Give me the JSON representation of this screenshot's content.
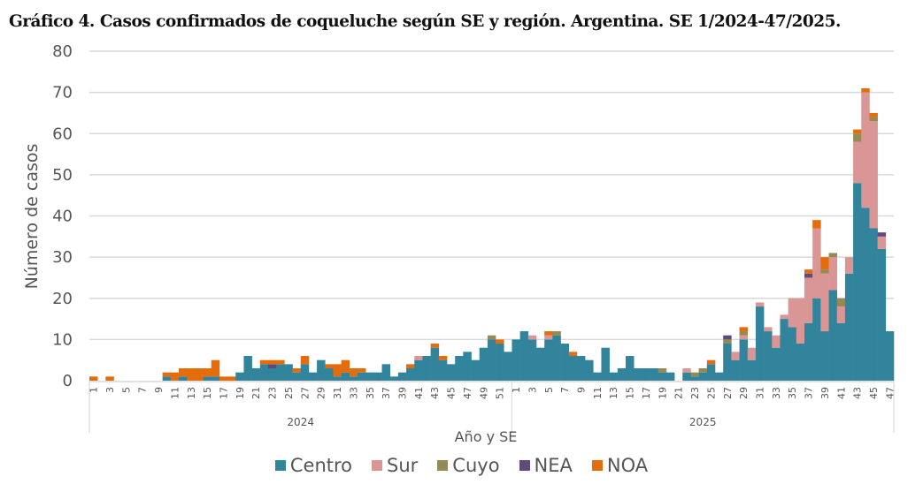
{
  "chart_data": {
    "type": "bar",
    "stacked": true,
    "title": "Gráfico 4. Casos confirmados de coqueluche según SE y región. Argentina. SE 1/2024-47/2025.",
    "xlabel": "Año y SE",
    "ylabel": "Número de casos",
    "ylim": [
      0,
      80
    ],
    "yticks": [
      0,
      10,
      20,
      30,
      40,
      50,
      60,
      70,
      80
    ],
    "grid": true,
    "legend_position": "bottom",
    "groups": [
      {
        "label": "2024",
        "weeks": 52
      },
      {
        "label": "2025",
        "weeks": 47
      }
    ],
    "categories": [
      "1",
      "2",
      "3",
      "4",
      "5",
      "6",
      "7",
      "8",
      "9",
      "10",
      "11",
      "12",
      "13",
      "14",
      "15",
      "16",
      "17",
      "18",
      "19",
      "20",
      "21",
      "22",
      "23",
      "24",
      "25",
      "26",
      "27",
      "28",
      "29",
      "30",
      "31",
      "32",
      "33",
      "34",
      "35",
      "36",
      "37",
      "38",
      "39",
      "40",
      "41",
      "42",
      "43",
      "44",
      "45",
      "46",
      "47",
      "48",
      "49",
      "50",
      "51",
      "52",
      "1",
      "2",
      "3",
      "4",
      "5",
      "6",
      "7",
      "8",
      "9",
      "10",
      "11",
      "12",
      "13",
      "14",
      "15",
      "16",
      "17",
      "18",
      "19",
      "20",
      "21",
      "22",
      "23",
      "24",
      "25",
      "26",
      "27",
      "28",
      "29",
      "30",
      "31",
      "32",
      "33",
      "34",
      "35",
      "36",
      "37",
      "38",
      "39",
      "40",
      "41",
      "42",
      "43",
      "44",
      "45",
      "46",
      "47"
    ],
    "tick_labels": [
      "1",
      "3",
      "5",
      "7",
      "9",
      "11",
      "13",
      "15",
      "17",
      "19",
      "21",
      "23",
      "25",
      "27",
      "29",
      "31",
      "33",
      "35",
      "37",
      "39",
      "41",
      "43",
      "45",
      "47",
      "49",
      "51",
      "1",
      "3",
      "5",
      "7",
      "9",
      "11",
      "13",
      "15",
      "17",
      "19",
      "21",
      "23",
      "25",
      "27",
      "29",
      "31",
      "33",
      "35",
      "37",
      "39",
      "41",
      "43",
      "45",
      "47"
    ],
    "series": [
      {
        "name": "Centro",
        "color": "#31849b",
        "values": [
          0,
          0,
          0,
          0,
          0,
          0,
          0,
          0,
          0,
          1,
          0,
          1,
          0,
          0,
          1,
          1,
          0,
          0,
          2,
          6,
          3,
          4,
          3,
          4,
          4,
          2,
          4,
          2,
          5,
          3,
          1,
          2,
          1,
          2,
          2,
          2,
          4,
          1,
          2,
          3,
          5,
          6,
          8,
          5,
          4,
          6,
          7,
          5,
          8,
          10,
          9,
          7,
          10,
          12,
          10,
          8,
          10,
          11,
          9,
          6,
          6,
          5,
          2,
          8,
          2,
          3,
          6,
          3,
          3,
          3,
          2,
          2,
          0,
          2,
          1,
          2,
          4,
          2,
          9,
          5,
          10,
          5,
          18,
          12,
          8,
          15,
          13,
          9,
          14,
          20,
          12,
          22,
          14,
          26,
          48,
          42,
          37,
          32,
          12
        ]
      },
      {
        "name": "Sur",
        "color": "#da9694",
        "values": [
          0,
          0,
          0,
          0,
          0,
          0,
          0,
          0,
          0,
          0,
          0,
          0,
          0,
          0,
          0,
          0,
          0,
          0,
          0,
          0,
          0,
          0,
          0,
          0,
          0,
          0,
          0,
          0,
          0,
          0,
          0,
          0,
          0,
          0,
          0,
          0,
          0,
          0,
          0,
          0,
          1,
          0,
          0,
          0,
          0,
          0,
          0,
          0,
          0,
          0,
          0,
          0,
          0,
          0,
          1,
          0,
          1,
          0,
          0,
          0,
          0,
          0,
          0,
          0,
          0,
          0,
          0,
          0,
          0,
          0,
          0,
          0,
          0,
          1,
          0,
          0,
          0,
          0,
          0,
          2,
          1,
          3,
          1,
          1,
          3,
          1,
          7,
          11,
          11,
          17,
          14,
          8,
          4,
          4,
          10,
          28,
          26,
          3,
          0
        ]
      },
      {
        "name": "Cuyo",
        "color": "#948a54",
        "values": [
          0,
          0,
          0,
          0,
          0,
          0,
          0,
          0,
          0,
          0,
          0,
          0,
          0,
          0,
          0,
          0,
          0,
          0,
          0,
          0,
          0,
          0,
          0,
          0,
          0,
          0,
          0,
          0,
          0,
          0,
          0,
          0,
          0,
          0,
          0,
          0,
          0,
          0,
          0,
          0,
          0,
          0,
          0,
          0,
          0,
          0,
          0,
          0,
          0,
          1,
          0,
          0,
          0,
          0,
          0,
          0,
          0,
          1,
          0,
          0,
          0,
          0,
          0,
          0,
          0,
          0,
          0,
          0,
          0,
          0,
          1,
          0,
          0,
          0,
          1,
          1,
          0,
          0,
          1,
          0,
          1,
          0,
          0,
          0,
          0,
          0,
          0,
          0,
          0,
          0,
          1,
          1,
          2,
          0,
          2,
          0,
          1,
          0,
          0
        ]
      },
      {
        "name": "NEA",
        "color": "#604a7b",
        "values": [
          0,
          0,
          0,
          0,
          0,
          0,
          0,
          0,
          0,
          0,
          0,
          0,
          0,
          0,
          0,
          0,
          0,
          0,
          0,
          0,
          0,
          0,
          1,
          0,
          0,
          0,
          0,
          0,
          0,
          0,
          0,
          0,
          0,
          0,
          0,
          0,
          0,
          0,
          0,
          0,
          0,
          0,
          0,
          0,
          0,
          0,
          0,
          0,
          0,
          0,
          0,
          0,
          0,
          0,
          0,
          0,
          0,
          0,
          0,
          0,
          0,
          0,
          0,
          0,
          0,
          0,
          0,
          0,
          0,
          0,
          0,
          0,
          0,
          0,
          0,
          0,
          0,
          0,
          1,
          0,
          0,
          0,
          0,
          0,
          0,
          0,
          0,
          0,
          1,
          0,
          0,
          0,
          0,
          0,
          0,
          0,
          0,
          1,
          0
        ]
      },
      {
        "name": "NOA",
        "color": "#e46c0a",
        "values": [
          1,
          0,
          1,
          0,
          0,
          0,
          0,
          0,
          0,
          1,
          2,
          2,
          3,
          3,
          2,
          4,
          1,
          1,
          0,
          0,
          0,
          1,
          1,
          1,
          0,
          1,
          2,
          0,
          0,
          1,
          3,
          3,
          2,
          1,
          0,
          0,
          0,
          0,
          0,
          1,
          0,
          0,
          1,
          1,
          0,
          0,
          0,
          0,
          0,
          0,
          1,
          0,
          0,
          0,
          0,
          0,
          1,
          0,
          0,
          1,
          0,
          0,
          0,
          0,
          0,
          0,
          0,
          0,
          0,
          0,
          0,
          0,
          0,
          0,
          0,
          0,
          1,
          0,
          0,
          0,
          1,
          0,
          0,
          0,
          0,
          0,
          0,
          0,
          1,
          2,
          3,
          0,
          0,
          0,
          1,
          1,
          1,
          0,
          0
        ]
      }
    ]
  }
}
